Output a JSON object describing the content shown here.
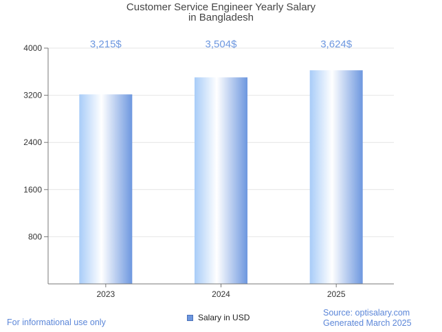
{
  "chart_data": {
    "type": "bar",
    "title_line1": "Customer Service Engineer Yearly Salary",
    "title_line2": "in Bangladesh",
    "categories": [
      "2023",
      "2024",
      "2025"
    ],
    "series": [
      {
        "name": "Salary in USD",
        "values": [
          3215,
          3504,
          3624
        ]
      }
    ],
    "data_labels": [
      "3,215$",
      "3,504$",
      "3,624$"
    ],
    "y_ticks": [
      800,
      1600,
      2400,
      3200,
      4000
    ],
    "ylim": [
      0,
      4000
    ],
    "grid": true,
    "legend_position": "bottom-center",
    "bar_color": "#6d97df",
    "label_color": "#6d97df"
  },
  "footer": {
    "disclaimer": "For informational use only",
    "source_line1": "Source: optisalary.com",
    "source_line2": "Generated March 2025"
  }
}
